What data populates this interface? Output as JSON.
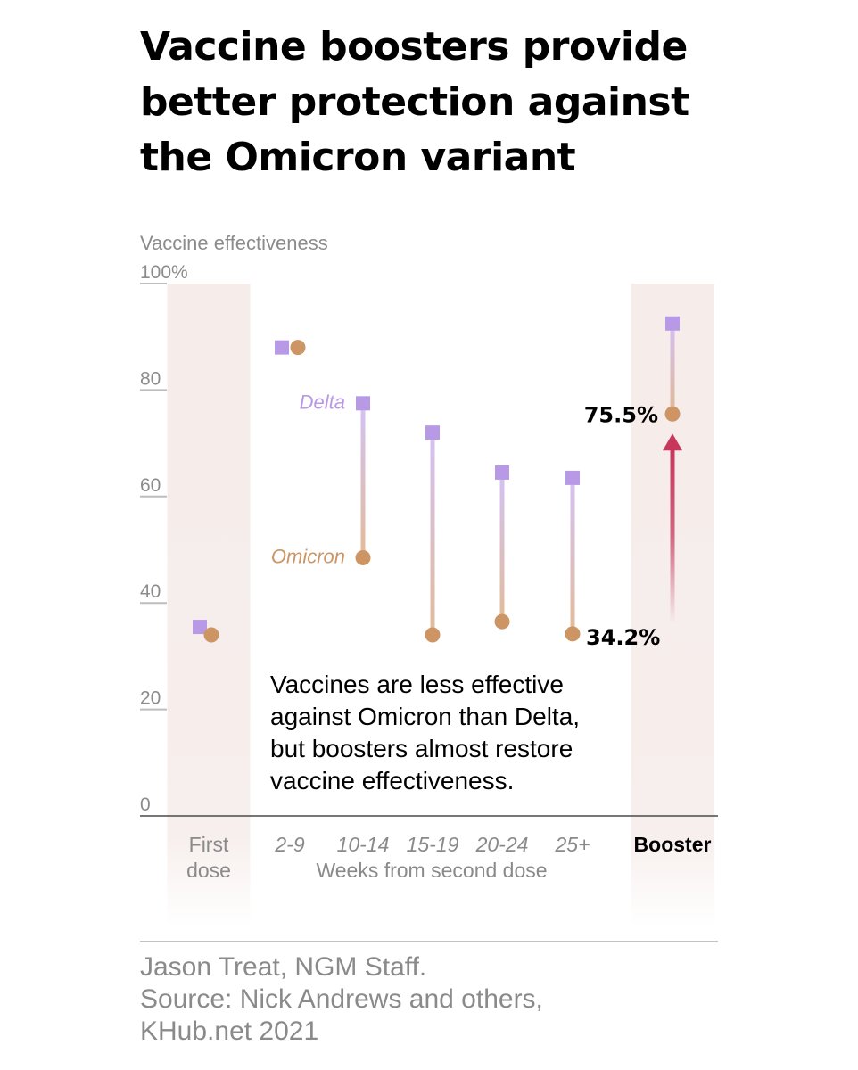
{
  "title_lines": [
    "Vaccine boosters provide",
    "better protection against",
    "the Omicron variant"
  ],
  "chart_data": {
    "type": "scatter",
    "ylabel": "Vaccine effectiveness",
    "ylim": [
      0,
      100
    ],
    "y_ticks": [
      {
        "value": 100,
        "label": "100%"
      },
      {
        "value": 80,
        "label": "80"
      },
      {
        "value": 60,
        "label": "60"
      },
      {
        "value": 40,
        "label": "40"
      },
      {
        "value": 20,
        "label": "20"
      },
      {
        "value": 0,
        "label": "0"
      }
    ],
    "categories": [
      {
        "label_lines": [
          "First",
          "dose"
        ],
        "bold": false,
        "highlighted": true
      },
      {
        "label_lines": [
          "2-9"
        ],
        "bold": false,
        "highlighted": false
      },
      {
        "label_lines": [
          "10-14"
        ],
        "bold": false,
        "highlighted": false
      },
      {
        "label_lines": [
          "15-19"
        ],
        "bold": false,
        "highlighted": false
      },
      {
        "label_lines": [
          "20-24"
        ],
        "bold": false,
        "highlighted": false
      },
      {
        "label_lines": [
          "25+"
        ],
        "bold": false,
        "highlighted": false
      },
      {
        "label_lines": [
          "Booster"
        ],
        "bold": true,
        "highlighted": true
      }
    ],
    "xlabel": "Weeks from second dose",
    "series": [
      {
        "name": "Delta",
        "color": "#b899e6",
        "marker": "square",
        "values": [
          35.5,
          88,
          77.5,
          72,
          64.5,
          63.5,
          92.5
        ]
      },
      {
        "name": "Omicron",
        "color": "#cc9563",
        "marker": "circle",
        "values": [
          34,
          88,
          48.5,
          34,
          36.5,
          34.2,
          75.5
        ]
      }
    ],
    "series_labels": [
      {
        "series": "Delta",
        "text": "Delta"
      },
      {
        "series": "Omicron",
        "text": "Omicron"
      }
    ],
    "value_labels": [
      {
        "text": "75.5%",
        "value": 75.5
      },
      {
        "text": "34.2%",
        "value": 34.2
      }
    ],
    "arrow": {
      "from": 34.2,
      "to": 75.5,
      "color": "#c8365c"
    },
    "annotation_lines": [
      "Vaccines are less effective",
      "against Omicron than Delta,",
      "but boosters almost restore",
      "vaccine effectiveness."
    ],
    "grid": false
  },
  "footer_lines": [
    "Jason Treat, NGM Staff.",
    "Source: Nick Andrews and others,",
    "KHub.net 2021"
  ]
}
